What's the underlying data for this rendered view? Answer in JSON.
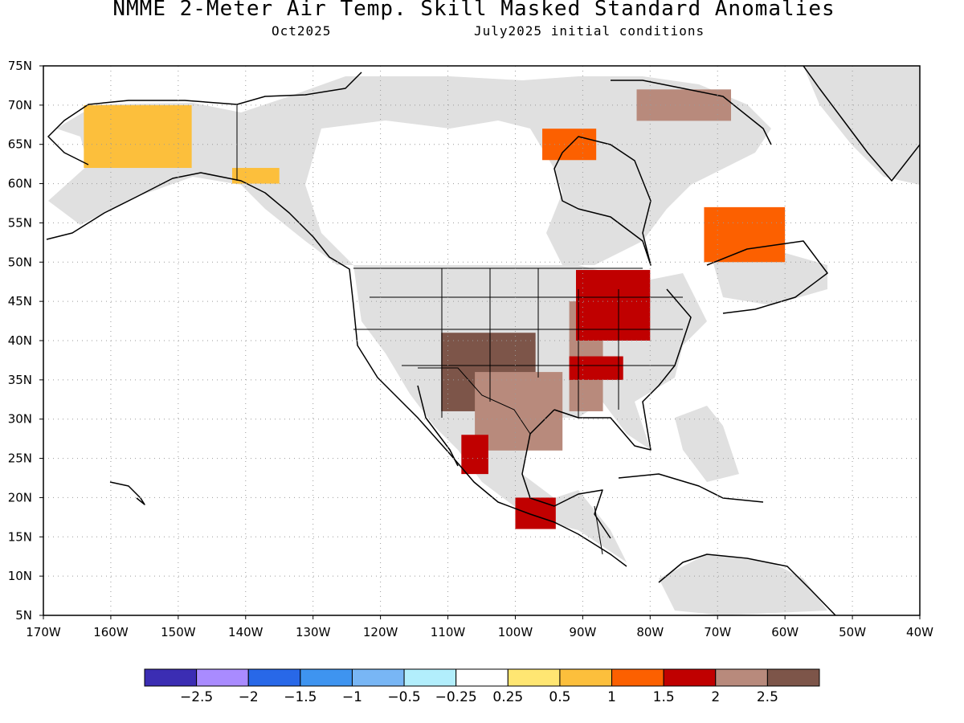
{
  "header": {
    "title": "NMME 2-Meter Air Temp. Skill Masked Standard Anomalies",
    "valid_month": "Oct2025",
    "initial_conditions": "July2025 initial conditions"
  },
  "map": {
    "lon_range": [
      -170,
      -40
    ],
    "lat_range": [
      5,
      75
    ],
    "lat_labels": [
      "5N",
      "10N",
      "15N",
      "20N",
      "25N",
      "30N",
      "35N",
      "40N",
      "45N",
      "50N",
      "55N",
      "60N",
      "65N",
      "70N",
      "75N"
    ],
    "lon_labels": [
      "170W",
      "160W",
      "150W",
      "140W",
      "130W",
      "120W",
      "110W",
      "100W",
      "90W",
      "80W",
      "70W",
      "60W",
      "50W",
      "40W"
    ],
    "grid": "dotted",
    "mask_color": "#e0e0e0",
    "anomaly_regions": [
      {
        "name": "alaska-west",
        "color": "#fcbf3c",
        "level": 0.5,
        "cells": [
          [
            -164,
            62,
            -148,
            70
          ]
        ]
      },
      {
        "name": "alaska-south",
        "color": "#fcbf3c",
        "level": 0.5,
        "cells": [
          [
            -142,
            60,
            -135,
            62
          ]
        ]
      },
      {
        "name": "southwest-us",
        "color": "#7d5549",
        "level": 2.5,
        "cells": [
          [
            -111,
            31,
            -97,
            41
          ]
        ]
      },
      {
        "name": "texas-mexico",
        "color": "#b88a7c",
        "level": 2.0,
        "cells": [
          [
            -106,
            26,
            -93,
            36
          ]
        ]
      },
      {
        "name": "mid-mississippi",
        "color": "#b88a7c",
        "level": 2.0,
        "cells": [
          [
            -92,
            31,
            -87,
            45
          ]
        ]
      },
      {
        "name": "great-lakes",
        "color": "#c00000",
        "level": 1.5,
        "cells": [
          [
            -91,
            40,
            -80,
            49
          ]
        ]
      },
      {
        "name": "tennessee",
        "color": "#c00000",
        "level": 1.5,
        "cells": [
          [
            -92,
            35,
            -84,
            38
          ]
        ]
      },
      {
        "name": "hudson-west",
        "color": "#fc6000",
        "level": 1.0,
        "cells": [
          [
            -96,
            63,
            -88,
            67
          ]
        ]
      },
      {
        "name": "labrador",
        "color": "#fc6000",
        "level": 1.0,
        "cells": [
          [
            -72,
            50,
            -60,
            57
          ]
        ]
      },
      {
        "name": "baffin",
        "color": "#b88a7c",
        "level": 2.0,
        "cells": [
          [
            -82,
            68,
            -68,
            72
          ]
        ]
      },
      {
        "name": "mexico-west",
        "color": "#c00000",
        "level": 1.5,
        "cells": [
          [
            -108,
            23,
            -104,
            28
          ]
        ]
      },
      {
        "name": "southern-mexico",
        "color": "#c00000",
        "level": 1.5,
        "cells": [
          [
            -100,
            16,
            -94,
            20
          ]
        ]
      }
    ]
  },
  "colorbar": {
    "colors": [
      "#3b2db3",
      "#a98bff",
      "#2868e8",
      "#3e94f0",
      "#78b6f5",
      "#b2eefc",
      "#ffffff",
      "#ffe672",
      "#fcbf3c",
      "#fc6000",
      "#c00000",
      "#b88a7c",
      "#7d5549"
    ],
    "labels": [
      "-2.5",
      "-2",
      "-1.5",
      "-1",
      "-0.5",
      "-0.25",
      "0.25",
      "0.5",
      "1",
      "1.5",
      "2",
      "2.5"
    ]
  }
}
